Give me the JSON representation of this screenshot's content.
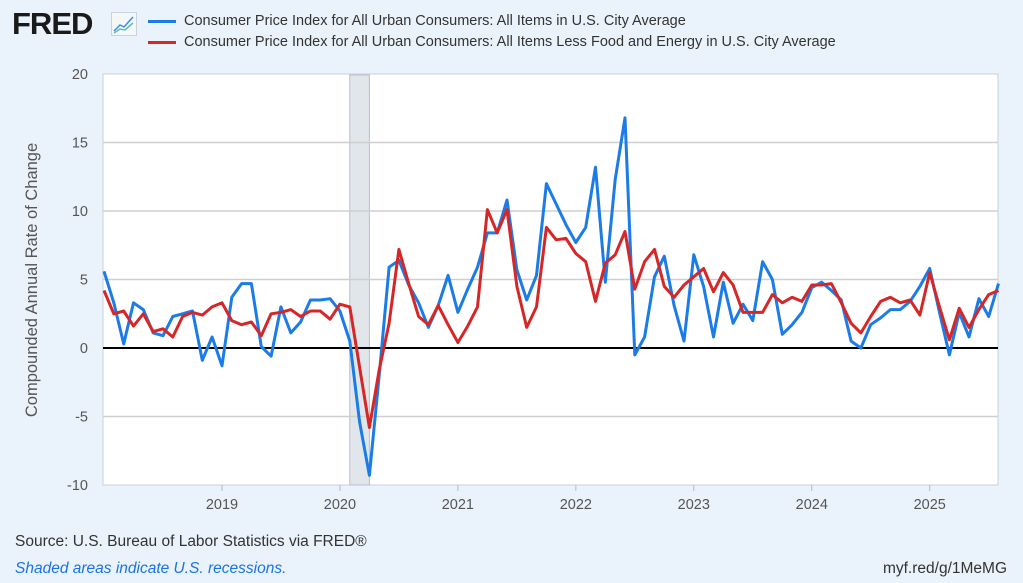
{
  "header": {
    "logo_text": "FRED"
  },
  "colors": {
    "blue": "#1b7ce8",
    "red": "#d62728",
    "background": "#eaf2fb",
    "recession": "#e1e6eb"
  },
  "footer": {
    "source": "Source: U.S. Bureau of Labor Statistics via FRED®",
    "recession_note": "Shaded areas indicate U.S. recessions.",
    "short_url": "myf.red/g/1MeMG"
  },
  "chart_data": {
    "type": "line",
    "ylabel": "Compounded Annual Rate of Change",
    "xlabel": "",
    "ylim": [
      -10,
      20
    ],
    "yticks": [
      -10,
      -5,
      0,
      5,
      10,
      15,
      20
    ],
    "xticks": [
      "2019",
      "2020",
      "2021",
      "2022",
      "2023",
      "2024",
      "2025"
    ],
    "x_start": "2018-01",
    "x_frequency": "monthly",
    "grid": true,
    "legend_position": "top",
    "recessions": [
      {
        "start": "2020-02",
        "end": "2020-04"
      }
    ],
    "series": [
      {
        "name": "Consumer Price Index for All Urban Consumers: All Items in U.S. City Average",
        "color": "#1b7ce8",
        "values": [
          5.6,
          3.3,
          0.3,
          3.3,
          2.8,
          1.1,
          0.9,
          2.3,
          2.5,
          2.7,
          -0.9,
          0.8,
          -1.3,
          3.7,
          4.7,
          4.7,
          0.1,
          -0.6,
          3.0,
          1.1,
          1.9,
          3.5,
          3.5,
          3.6,
          2.7,
          0.5,
          -5.4,
          -9.3,
          -2.0,
          5.9,
          6.4,
          4.6,
          3.3,
          1.5,
          3.1,
          5.3,
          2.6,
          4.3,
          5.9,
          8.4,
          8.4,
          10.8,
          5.7,
          3.5,
          5.3,
          12.0,
          10.5,
          9.0,
          7.7,
          8.8,
          13.2,
          4.8,
          12.3,
          16.8,
          -0.5,
          0.8,
          5.2,
          6.7,
          3.1,
          0.5,
          6.8,
          4.5,
          0.8,
          4.8,
          1.8,
          3.2,
          2.0,
          6.3,
          5.0,
          1.0,
          1.7,
          2.6,
          4.4,
          4.8,
          4.2,
          3.5,
          0.5,
          0.0,
          1.7,
          2.2,
          2.8,
          2.8,
          3.4,
          4.5,
          5.8,
          2.6,
          -0.5,
          2.6,
          0.8,
          3.6,
          2.3,
          4.7
        ]
      },
      {
        "name": "Consumer Price Index for All Urban Consumers: All Items Less Food and Energy in U.S. City Average",
        "color": "#d62728",
        "values": [
          4.2,
          2.5,
          2.7,
          1.6,
          2.5,
          1.2,
          1.4,
          0.8,
          2.3,
          2.6,
          2.4,
          3.0,
          3.3,
          2.0,
          1.7,
          1.9,
          0.9,
          2.5,
          2.6,
          2.8,
          2.3,
          2.7,
          2.7,
          2.1,
          3.2,
          3.0,
          -1.4,
          -5.8,
          -1.6,
          1.8,
          7.2,
          4.7,
          2.3,
          1.7,
          3.1,
          1.7,
          0.4,
          1.6,
          3.0,
          10.1,
          8.4,
          10.1,
          4.5,
          1.5,
          3.0,
          8.8,
          7.9,
          8.0,
          6.9,
          6.3,
          3.4,
          6.2,
          6.8,
          8.5,
          4.3,
          6.3,
          7.2,
          4.5,
          3.7,
          4.6,
          5.2,
          5.8,
          4.1,
          5.5,
          4.6,
          2.6,
          2.6,
          2.6,
          3.9,
          3.3,
          3.7,
          3.4,
          4.6,
          4.6,
          4.7,
          3.3,
          1.8,
          1.1,
          2.3,
          3.4,
          3.7,
          3.3,
          3.5,
          2.4,
          5.5,
          3.0,
          0.6,
          2.9,
          1.5,
          2.8,
          3.9,
          4.2
        ]
      }
    ]
  }
}
